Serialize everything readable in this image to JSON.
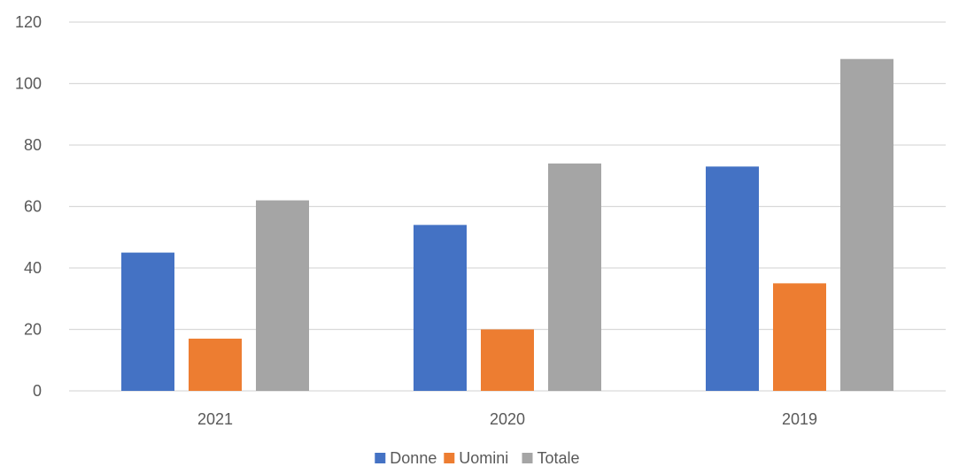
{
  "chart_data": {
    "type": "bar",
    "categories": [
      "2021",
      "2020",
      "2019"
    ],
    "series": [
      {
        "name": "Donne",
        "values": [
          45,
          54,
          73
        ],
        "color": "#4472C4"
      },
      {
        "name": "Uomini",
        "values": [
          17,
          20,
          35
        ],
        "color": "#ED7D31"
      },
      {
        "name": "Totale",
        "values": [
          62,
          74,
          108
        ],
        "color": "#A5A5A5"
      }
    ],
    "ylim": [
      0,
      120
    ],
    "yticks": [
      0,
      20,
      40,
      60,
      80,
      100,
      120
    ],
    "grid": true,
    "legend": "bottom-center",
    "gridline_color": "#D9D9D9",
    "text_color": "#595959"
  }
}
